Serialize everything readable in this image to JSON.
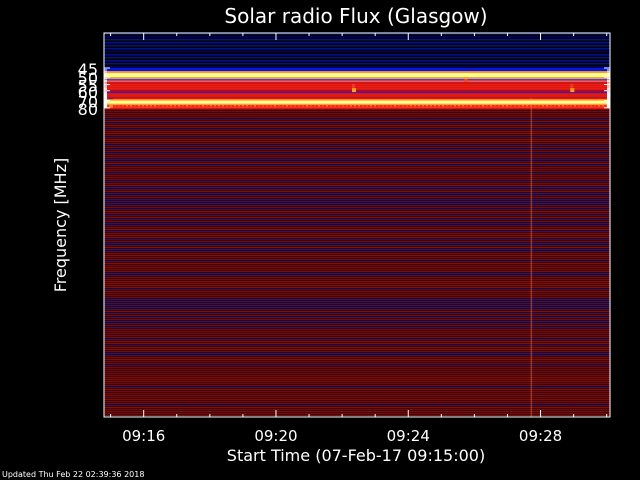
{
  "chart_data": {
    "type": "heatmap",
    "title": "Solar radio Flux (Glasgow)",
    "xlabel": "Start Time (07-Feb-17 09:15:00)",
    "ylabel": "Frequency [MHz]",
    "x_tick_labels": [
      "09:16",
      "09:20",
      "09:24",
      "09:28"
    ],
    "x_tick_minutes": [
      1,
      5,
      9,
      13
    ],
    "xlim_minutes": [
      -0.2,
      15.1
    ],
    "y_tick_values": [
      45,
      50,
      55,
      60,
      70,
      80
    ],
    "y_tick_labels": [
      "45",
      "50",
      "55",
      "60",
      "70",
      "80"
    ],
    "ylim_mhz": [
      45,
      80
    ],
    "y_scale": "reciprocal",
    "colormap": {
      "low": "#0000c0",
      "mid": "#d01010",
      "high": "#ffff90"
    },
    "bands_mhz": [
      {
        "from": 45,
        "to": 48.6,
        "level": "low"
      },
      {
        "from": 48.6,
        "to": 49.0,
        "level": "high"
      },
      {
        "from": 49.0,
        "to": 52.6,
        "level": "low"
      },
      {
        "from": 52.6,
        "to": 60.6,
        "level": "mid"
      },
      {
        "from": 60.6,
        "to": 72.5,
        "level": "mixed"
      },
      {
        "from": 71.8,
        "to": 72.3,
        "level": "high"
      },
      {
        "from": 72.5,
        "to": 80,
        "level": "mid"
      }
    ]
  },
  "footer": "Updated Thu Feb 22 02:39:36 2018"
}
